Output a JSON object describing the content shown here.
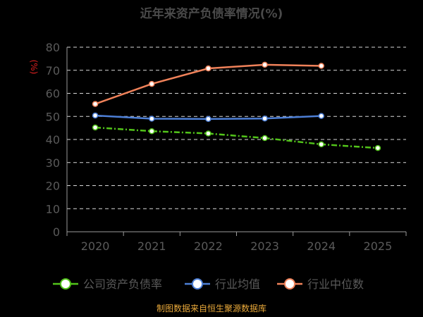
{
  "chart_data": {
    "type": "line",
    "title": "近年来资产负债率情况(%)",
    "ylabel": "(%)",
    "xlabel": "",
    "categories": [
      "2020",
      "2021",
      "2022",
      "2023",
      "2024",
      "2025"
    ],
    "ylim": [
      0,
      80
    ],
    "yticks": [
      0,
      10,
      20,
      30,
      40,
      50,
      60,
      70,
      80
    ],
    "grid": true,
    "legend_position": "bottom",
    "series": [
      {
        "name": "公司资产负债率",
        "values": [
          45.2,
          43.6,
          42.6,
          40.6,
          37.9,
          36.3
        ],
        "color": "#52c41a",
        "dashed": true
      },
      {
        "name": "行业均值",
        "values": [
          50.4,
          49.0,
          48.9,
          49.1,
          50.2,
          null
        ],
        "color": "#4d7fd6",
        "dashed": false
      },
      {
        "name": "行业中位数",
        "values": [
          55.4,
          64.1,
          70.8,
          72.4,
          71.9,
          null
        ],
        "color": "#f0825a",
        "dashed": false
      }
    ]
  },
  "footer": {
    "source": "制图数据来自恒生聚源数据库"
  }
}
